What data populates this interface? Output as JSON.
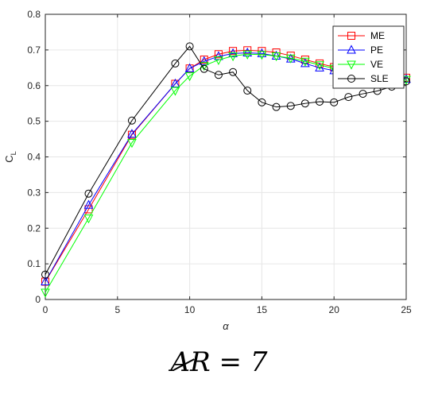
{
  "chart_data": {
    "type": "line",
    "xlabel": "α",
    "ylabel": "C",
    "ylabel_sub": "L",
    "xlim": [
      0,
      25
    ],
    "ylim": [
      0,
      0.8
    ],
    "xticks": [
      0,
      5,
      10,
      15,
      20,
      25
    ],
    "xtick_labels": [
      "0",
      "5",
      "10",
      "15",
      "20",
      "25"
    ],
    "yticks": [
      0,
      0.1,
      0.2,
      0.3,
      0.4,
      0.5,
      0.6,
      0.7,
      0.8
    ],
    "ytick_labels": [
      "0",
      "0.1",
      "0.2",
      "0.3",
      "0.4",
      "0.5",
      "0.6",
      "0.7",
      "0.8"
    ],
    "grid": true,
    "legend": "top-right",
    "series": [
      {
        "name": "ME",
        "color": "#ff0000",
        "marker": "square",
        "x": [
          0,
          3,
          6,
          9,
          10,
          11,
          12,
          13,
          14,
          15,
          16,
          17,
          18,
          19,
          20,
          21,
          22,
          23,
          24,
          25
        ],
        "y": [
          0.05,
          0.253,
          0.462,
          0.605,
          0.648,
          0.673,
          0.688,
          0.697,
          0.699,
          0.697,
          0.693,
          0.684,
          0.673,
          0.662,
          0.652,
          0.642,
          0.635,
          0.629,
          0.625,
          0.622
        ]
      },
      {
        "name": "PE",
        "color": "#0000ff",
        "marker": "triangle-up",
        "x": [
          0,
          3,
          6,
          9,
          10,
          11,
          12,
          13,
          14,
          15,
          16,
          17,
          18,
          19,
          20,
          21,
          22,
          23,
          24,
          25
        ],
        "y": [
          0.05,
          0.265,
          0.464,
          0.605,
          0.648,
          0.668,
          0.682,
          0.69,
          0.692,
          0.69,
          0.683,
          0.675,
          0.662,
          0.65,
          0.642,
          0.635,
          0.628,
          0.624,
          0.62,
          0.618
        ]
      },
      {
        "name": "VE",
        "color": "#00ff00",
        "marker": "triangle-down",
        "x": [
          0,
          3,
          6,
          9,
          10,
          11,
          12,
          13,
          14,
          15,
          16,
          17,
          18,
          19,
          20,
          21,
          22,
          23,
          24,
          25
        ],
        "y": [
          0.02,
          0.228,
          0.44,
          0.586,
          0.627,
          0.656,
          0.672,
          0.683,
          0.688,
          0.687,
          0.683,
          0.677,
          0.668,
          0.658,
          0.648,
          0.639,
          0.632,
          0.626,
          0.621,
          0.617
        ]
      },
      {
        "name": "SLE",
        "color": "#000000",
        "marker": "circle",
        "x": [
          0,
          3,
          6,
          9,
          10,
          11,
          12,
          13,
          14,
          15,
          16,
          17,
          18,
          19,
          20,
          21,
          22,
          23,
          24,
          25
        ],
        "y": [
          0.07,
          0.297,
          0.502,
          0.662,
          0.71,
          0.647,
          0.63,
          0.638,
          0.586,
          0.553,
          0.54,
          0.543,
          0.55,
          0.555,
          0.553,
          0.568,
          0.577,
          0.585,
          0.597,
          0.612
        ]
      }
    ]
  },
  "caption": {
    "prefix": "A",
    "rest": "R = 7"
  }
}
